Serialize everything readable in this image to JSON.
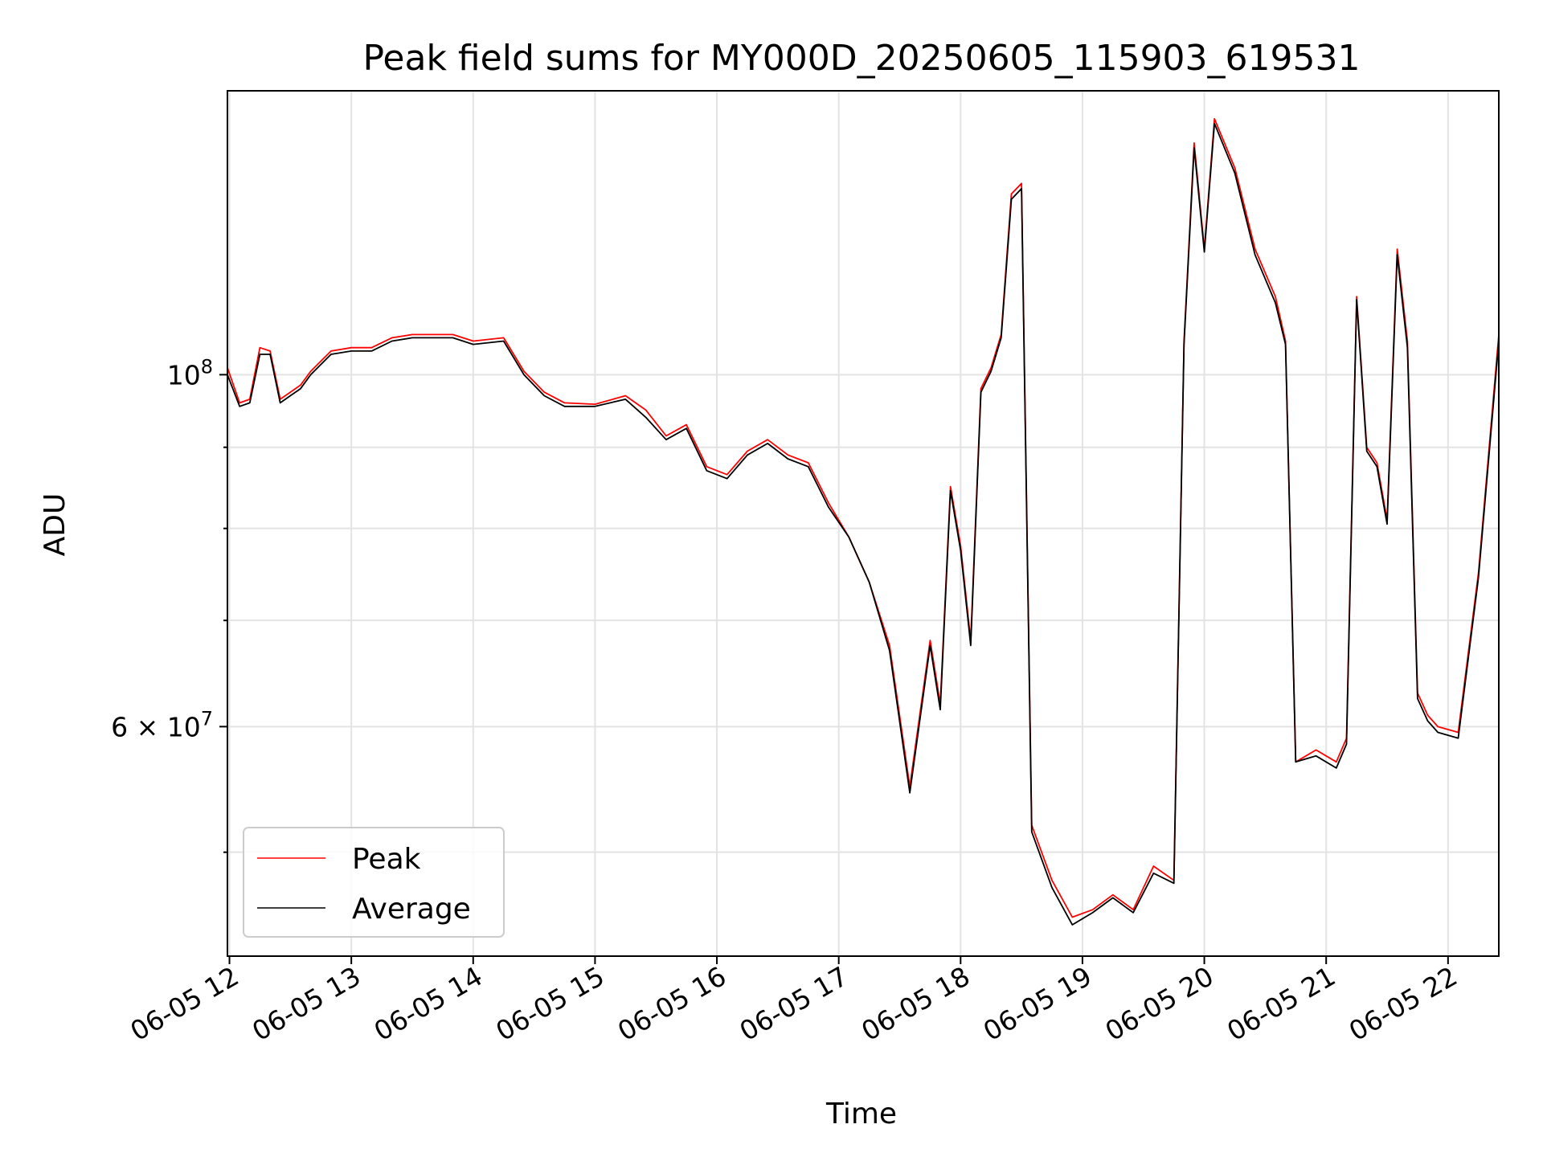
{
  "chart_data": {
    "type": "line",
    "title": "Peak field sums for MY000D_20250605_115903_619531",
    "xlabel": "Time",
    "ylabel": "ADU",
    "yscale": "log",
    "ylim": [
      43000000,
      151000000
    ],
    "xlim": [
      "2025-06-05 11:59",
      "2025-06-05 22:25"
    ],
    "grid": true,
    "legend_position": "lower-left",
    "x_tick_labels": [
      "06-05 12",
      "06-05 13",
      "06-05 14",
      "06-05 15",
      "06-05 16",
      "06-05 17",
      "06-05 18",
      "06-05 19",
      "06-05 20",
      "06-05 21",
      "06-05 22"
    ],
    "y_tick_labels": [
      {
        "value": 100000000,
        "base": "10",
        "exp": "8",
        "mantissa": ""
      },
      {
        "value": 60000000,
        "base": "10",
        "exp": "7",
        "mantissa": "6"
      }
    ],
    "series": [
      {
        "name": "Peak",
        "color": "#ff0000",
        "x": [
          "2025-06-05 11:59",
          "2025-06-05 12:05",
          "2025-06-05 12:10",
          "2025-06-05 12:15",
          "2025-06-05 12:20",
          "2025-06-05 12:25",
          "2025-06-05 12:30",
          "2025-06-05 12:35",
          "2025-06-05 12:40",
          "2025-06-05 12:50",
          "2025-06-05 13:00",
          "2025-06-05 13:10",
          "2025-06-05 13:20",
          "2025-06-05 13:30",
          "2025-06-05 13:40",
          "2025-06-05 13:50",
          "2025-06-05 14:00",
          "2025-06-05 14:15",
          "2025-06-05 14:25",
          "2025-06-05 14:35",
          "2025-06-05 14:45",
          "2025-06-05 15:00",
          "2025-06-05 15:15",
          "2025-06-05 15:25",
          "2025-06-05 15:35",
          "2025-06-05 15:45",
          "2025-06-05 15:55",
          "2025-06-05 16:05",
          "2025-06-05 16:15",
          "2025-06-05 16:25",
          "2025-06-05 16:35",
          "2025-06-05 16:45",
          "2025-06-05 16:55",
          "2025-06-05 17:05",
          "2025-06-05 17:15",
          "2025-06-05 17:25",
          "2025-06-05 17:35",
          "2025-06-05 17:45",
          "2025-06-05 17:50",
          "2025-06-05 17:55",
          "2025-06-05 18:00",
          "2025-06-05 18:05",
          "2025-06-05 18:10",
          "2025-06-05 18:15",
          "2025-06-05 18:20",
          "2025-06-05 18:25",
          "2025-06-05 18:30",
          "2025-06-05 18:35",
          "2025-06-05 18:45",
          "2025-06-05 18:55",
          "2025-06-05 19:05",
          "2025-06-05 19:15",
          "2025-06-05 19:25",
          "2025-06-05 19:35",
          "2025-06-05 19:45",
          "2025-06-05 19:50",
          "2025-06-05 19:55",
          "2025-06-05 20:00",
          "2025-06-05 20:05",
          "2025-06-05 20:15",
          "2025-06-05 20:25",
          "2025-06-05 20:35",
          "2025-06-05 20:40",
          "2025-06-05 20:45",
          "2025-06-05 20:55",
          "2025-06-05 21:05",
          "2025-06-05 21:10",
          "2025-06-05 21:15",
          "2025-06-05 21:20",
          "2025-06-05 21:25",
          "2025-06-05 21:30",
          "2025-06-05 21:35",
          "2025-06-05 21:40",
          "2025-06-05 21:45",
          "2025-06-05 21:50",
          "2025-06-05 21:55",
          "2025-06-05 22:05",
          "2025-06-05 22:15",
          "2025-06-05 22:25"
        ],
        "y": [
          101000000,
          96000000,
          96500000,
          104000000,
          103500000,
          96500000,
          97500000,
          98500000,
          100500000,
          103500000,
          104000000,
          104000000,
          105500000,
          106000000,
          106000000,
          106000000,
          105000000,
          105500000,
          100500000,
          97500000,
          96000000,
          95800000,
          97000000,
          95000000,
          91500000,
          93000000,
          87500000,
          86500000,
          89500000,
          91000000,
          89000000,
          88000000,
          83000000,
          79000000,
          74000000,
          67500000,
          55000000,
          68000000,
          62000000,
          85000000,
          78000000,
          68000000,
          98000000,
          101000000,
          106000000,
          130000000,
          132000000,
          52000000,
          48000000,
          45500000,
          46000000,
          47000000,
          46000000,
          49000000,
          48000000,
          105000000,
          140000000,
          120000000,
          145000000,
          135000000,
          120000000,
          112000000,
          105000000,
          57000000,
          58000000,
          57000000,
          59000000,
          112000000,
          90000000,
          88000000,
          81000000,
          120000000,
          105000000,
          63000000,
          61000000,
          60000000,
          59500000,
          75000000,
          106000000
        ]
      },
      {
        "name": "Average",
        "color": "#000000",
        "x": [
          "2025-06-05 11:59",
          "2025-06-05 12:05",
          "2025-06-05 12:10",
          "2025-06-05 12:15",
          "2025-06-05 12:20",
          "2025-06-05 12:25",
          "2025-06-05 12:30",
          "2025-06-05 12:35",
          "2025-06-05 12:40",
          "2025-06-05 12:50",
          "2025-06-05 13:00",
          "2025-06-05 13:10",
          "2025-06-05 13:20",
          "2025-06-05 13:30",
          "2025-06-05 13:40",
          "2025-06-05 13:50",
          "2025-06-05 14:00",
          "2025-06-05 14:15",
          "2025-06-05 14:25",
          "2025-06-05 14:35",
          "2025-06-05 14:45",
          "2025-06-05 15:00",
          "2025-06-05 15:15",
          "2025-06-05 15:25",
          "2025-06-05 15:35",
          "2025-06-05 15:45",
          "2025-06-05 15:55",
          "2025-06-05 16:05",
          "2025-06-05 16:15",
          "2025-06-05 16:25",
          "2025-06-05 16:35",
          "2025-06-05 16:45",
          "2025-06-05 16:55",
          "2025-06-05 17:05",
          "2025-06-05 17:15",
          "2025-06-05 17:25",
          "2025-06-05 17:35",
          "2025-06-05 17:45",
          "2025-06-05 17:50",
          "2025-06-05 17:55",
          "2025-06-05 18:00",
          "2025-06-05 18:05",
          "2025-06-05 18:10",
          "2025-06-05 18:15",
          "2025-06-05 18:20",
          "2025-06-05 18:25",
          "2025-06-05 18:30",
          "2025-06-05 18:35",
          "2025-06-05 18:45",
          "2025-06-05 18:55",
          "2025-06-05 19:05",
          "2025-06-05 19:15",
          "2025-06-05 19:25",
          "2025-06-05 19:35",
          "2025-06-05 19:45",
          "2025-06-05 19:50",
          "2025-06-05 19:55",
          "2025-06-05 20:00",
          "2025-06-05 20:05",
          "2025-06-05 20:15",
          "2025-06-05 20:25",
          "2025-06-05 20:35",
          "2025-06-05 20:40",
          "2025-06-05 20:45",
          "2025-06-05 20:55",
          "2025-06-05 21:05",
          "2025-06-05 21:10",
          "2025-06-05 21:15",
          "2025-06-05 21:20",
          "2025-06-05 21:25",
          "2025-06-05 21:30",
          "2025-06-05 21:35",
          "2025-06-05 21:40",
          "2025-06-05 21:45",
          "2025-06-05 21:50",
          "2025-06-05 21:55",
          "2025-06-05 22:05",
          "2025-06-05 22:15",
          "2025-06-05 22:25"
        ],
        "y": [
          100000000,
          95500000,
          96000000,
          103000000,
          103000000,
          96000000,
          97000000,
          98000000,
          100000000,
          103000000,
          103500000,
          103500000,
          105000000,
          105500000,
          105500000,
          105500000,
          104500000,
          105000000,
          100000000,
          97000000,
          95500000,
          95500000,
          96500000,
          94000000,
          91000000,
          92500000,
          87000000,
          86000000,
          89000000,
          90500000,
          88500000,
          87500000,
          82500000,
          79000000,
          74000000,
          67000000,
          54500000,
          67500000,
          61500000,
          84500000,
          77500000,
          67500000,
          97500000,
          100500000,
          105500000,
          129000000,
          131000000,
          51500000,
          47500000,
          45000000,
          45800000,
          46800000,
          45800000,
          48500000,
          47800000,
          104500000,
          139000000,
          119500000,
          144000000,
          134000000,
          119000000,
          111000000,
          104500000,
          57000000,
          57500000,
          56500000,
          58500000,
          111500000,
          89500000,
          87500000,
          80500000,
          119000000,
          104000000,
          62500000,
          60500000,
          59500000,
          59000000,
          74500000,
          105000000
        ]
      }
    ]
  }
}
